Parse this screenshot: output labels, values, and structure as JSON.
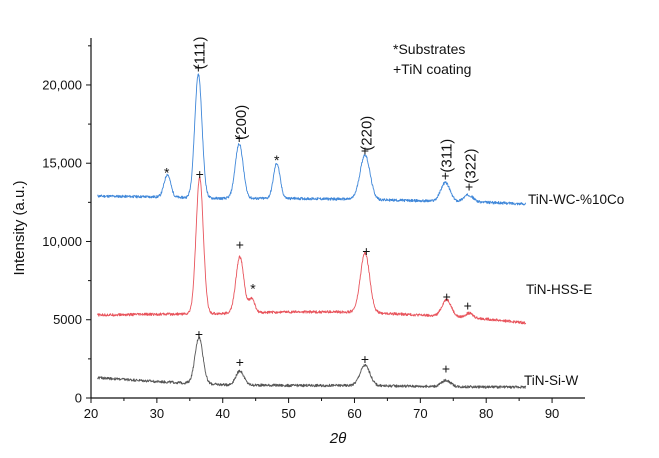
{
  "chart_data": {
    "type": "line",
    "xlabel": "2θ",
    "ylabel": "Intensity (a.u.)",
    "xlim": [
      20,
      95
    ],
    "ylim": [
      0,
      23000
    ],
    "x_ticks": [
      20,
      30,
      40,
      50,
      60,
      70,
      80,
      90
    ],
    "y_ticks": [
      0,
      5000,
      10000,
      15000,
      20000
    ],
    "y_tick_labels": [
      "0",
      "5000",
      "10,000",
      "15,000",
      "20,000"
    ],
    "legend": [
      "*Substrates",
      "+TiN coating"
    ],
    "series": [
      {
        "name": "TiN-WC-%10Co",
        "color": "#3f87d9",
        "baseline": [
          [
            21,
            12900
          ],
          [
            30,
            12850
          ],
          [
            40,
            12750
          ],
          [
            50,
            12750
          ],
          [
            60,
            12700
          ],
          [
            70,
            12600
          ],
          [
            80,
            12500
          ],
          [
            86,
            12400
          ]
        ],
        "peaks": [
          {
            "x": 31.6,
            "height": 1450,
            "width": 0.5
          },
          {
            "x": 36.3,
            "height": 7900,
            "width": 0.55
          },
          {
            "x": 42.5,
            "height": 3500,
            "width": 0.6
          },
          {
            "x": 48.2,
            "height": 2250,
            "width": 0.5
          },
          {
            "x": 61.6,
            "height": 2850,
            "width": 0.75
          },
          {
            "x": 73.8,
            "height": 1200,
            "width": 0.7
          },
          {
            "x": 77.3,
            "height": 450,
            "width": 0.7
          }
        ]
      },
      {
        "name": "TiN-HSS-E",
        "color": "#e8545c",
        "baseline": [
          [
            21,
            5300
          ],
          [
            30,
            5350
          ],
          [
            40,
            5400
          ],
          [
            50,
            5500
          ],
          [
            60,
            5500
          ],
          [
            70,
            5300
          ],
          [
            80,
            5050
          ],
          [
            86,
            4800
          ]
        ],
        "peaks": [
          {
            "x": 36.5,
            "height": 8700,
            "width": 0.55
          },
          {
            "x": 42.6,
            "height": 3600,
            "width": 0.6
          },
          {
            "x": 44.4,
            "height": 900,
            "width": 0.45
          },
          {
            "x": 61.6,
            "height": 3800,
            "width": 0.7
          },
          {
            "x": 74.0,
            "height": 1100,
            "width": 0.7
          },
          {
            "x": 77.4,
            "height": 300,
            "width": 0.6
          }
        ]
      },
      {
        "name": "TiN-Si-W",
        "color": "#555555",
        "baseline": [
          [
            21,
            1300
          ],
          [
            30,
            1050
          ],
          [
            40,
            850
          ],
          [
            50,
            800
          ],
          [
            60,
            800
          ],
          [
            70,
            750
          ],
          [
            80,
            700
          ],
          [
            86,
            700
          ]
        ],
        "peaks": [
          {
            "x": 36.4,
            "height": 2950,
            "width": 0.6
          },
          {
            "x": 42.6,
            "height": 900,
            "width": 0.6
          },
          {
            "x": 61.6,
            "height": 1300,
            "width": 0.75
          },
          {
            "x": 73.9,
            "height": 400,
            "width": 0.7
          }
        ]
      }
    ],
    "peak_labels": [
      {
        "text": "(111)",
        "x": 37.2,
        "y": 21000
      },
      {
        "text": "(200)",
        "x": 43.5,
        "y": 16500
      },
      {
        "text": "(220)",
        "x": 62.6,
        "y": 15800
      },
      {
        "text": "(311)",
        "x": 74.7,
        "y": 14400
      },
      {
        "text": "(322)",
        "x": 78.4,
        "y": 13700
      }
    ],
    "markers": [
      {
        "symbol": "+",
        "x": 36.3,
        "y": 21100
      },
      {
        "symbol": "+",
        "x": 42.5,
        "y": 16600
      },
      {
        "symbol": "*",
        "x": 31.5,
        "y": 14400
      },
      {
        "symbol": "*",
        "x": 48.2,
        "y": 15200
      },
      {
        "symbol": "+",
        "x": 61.6,
        "y": 15800
      },
      {
        "symbol": "+",
        "x": 73.8,
        "y": 14200
      },
      {
        "symbol": "+",
        "x": 77.4,
        "y": 13500
      },
      {
        "symbol": "+",
        "x": 36.5,
        "y": 14300
      },
      {
        "symbol": "+",
        "x": 42.6,
        "y": 9800
      },
      {
        "symbol": "*",
        "x": 44.6,
        "y": 7000
      },
      {
        "symbol": "+",
        "x": 61.8,
        "y": 9400
      },
      {
        "symbol": "+",
        "x": 74.0,
        "y": 6500
      },
      {
        "symbol": "+",
        "x": 77.2,
        "y": 5900
      },
      {
        "symbol": "+",
        "x": 36.4,
        "y": 4100
      },
      {
        "symbol": "+",
        "x": 42.6,
        "y": 2300
      },
      {
        "symbol": "+",
        "x": 61.6,
        "y": 2500
      },
      {
        "symbol": "+",
        "x": 73.9,
        "y": 1900
      }
    ]
  }
}
